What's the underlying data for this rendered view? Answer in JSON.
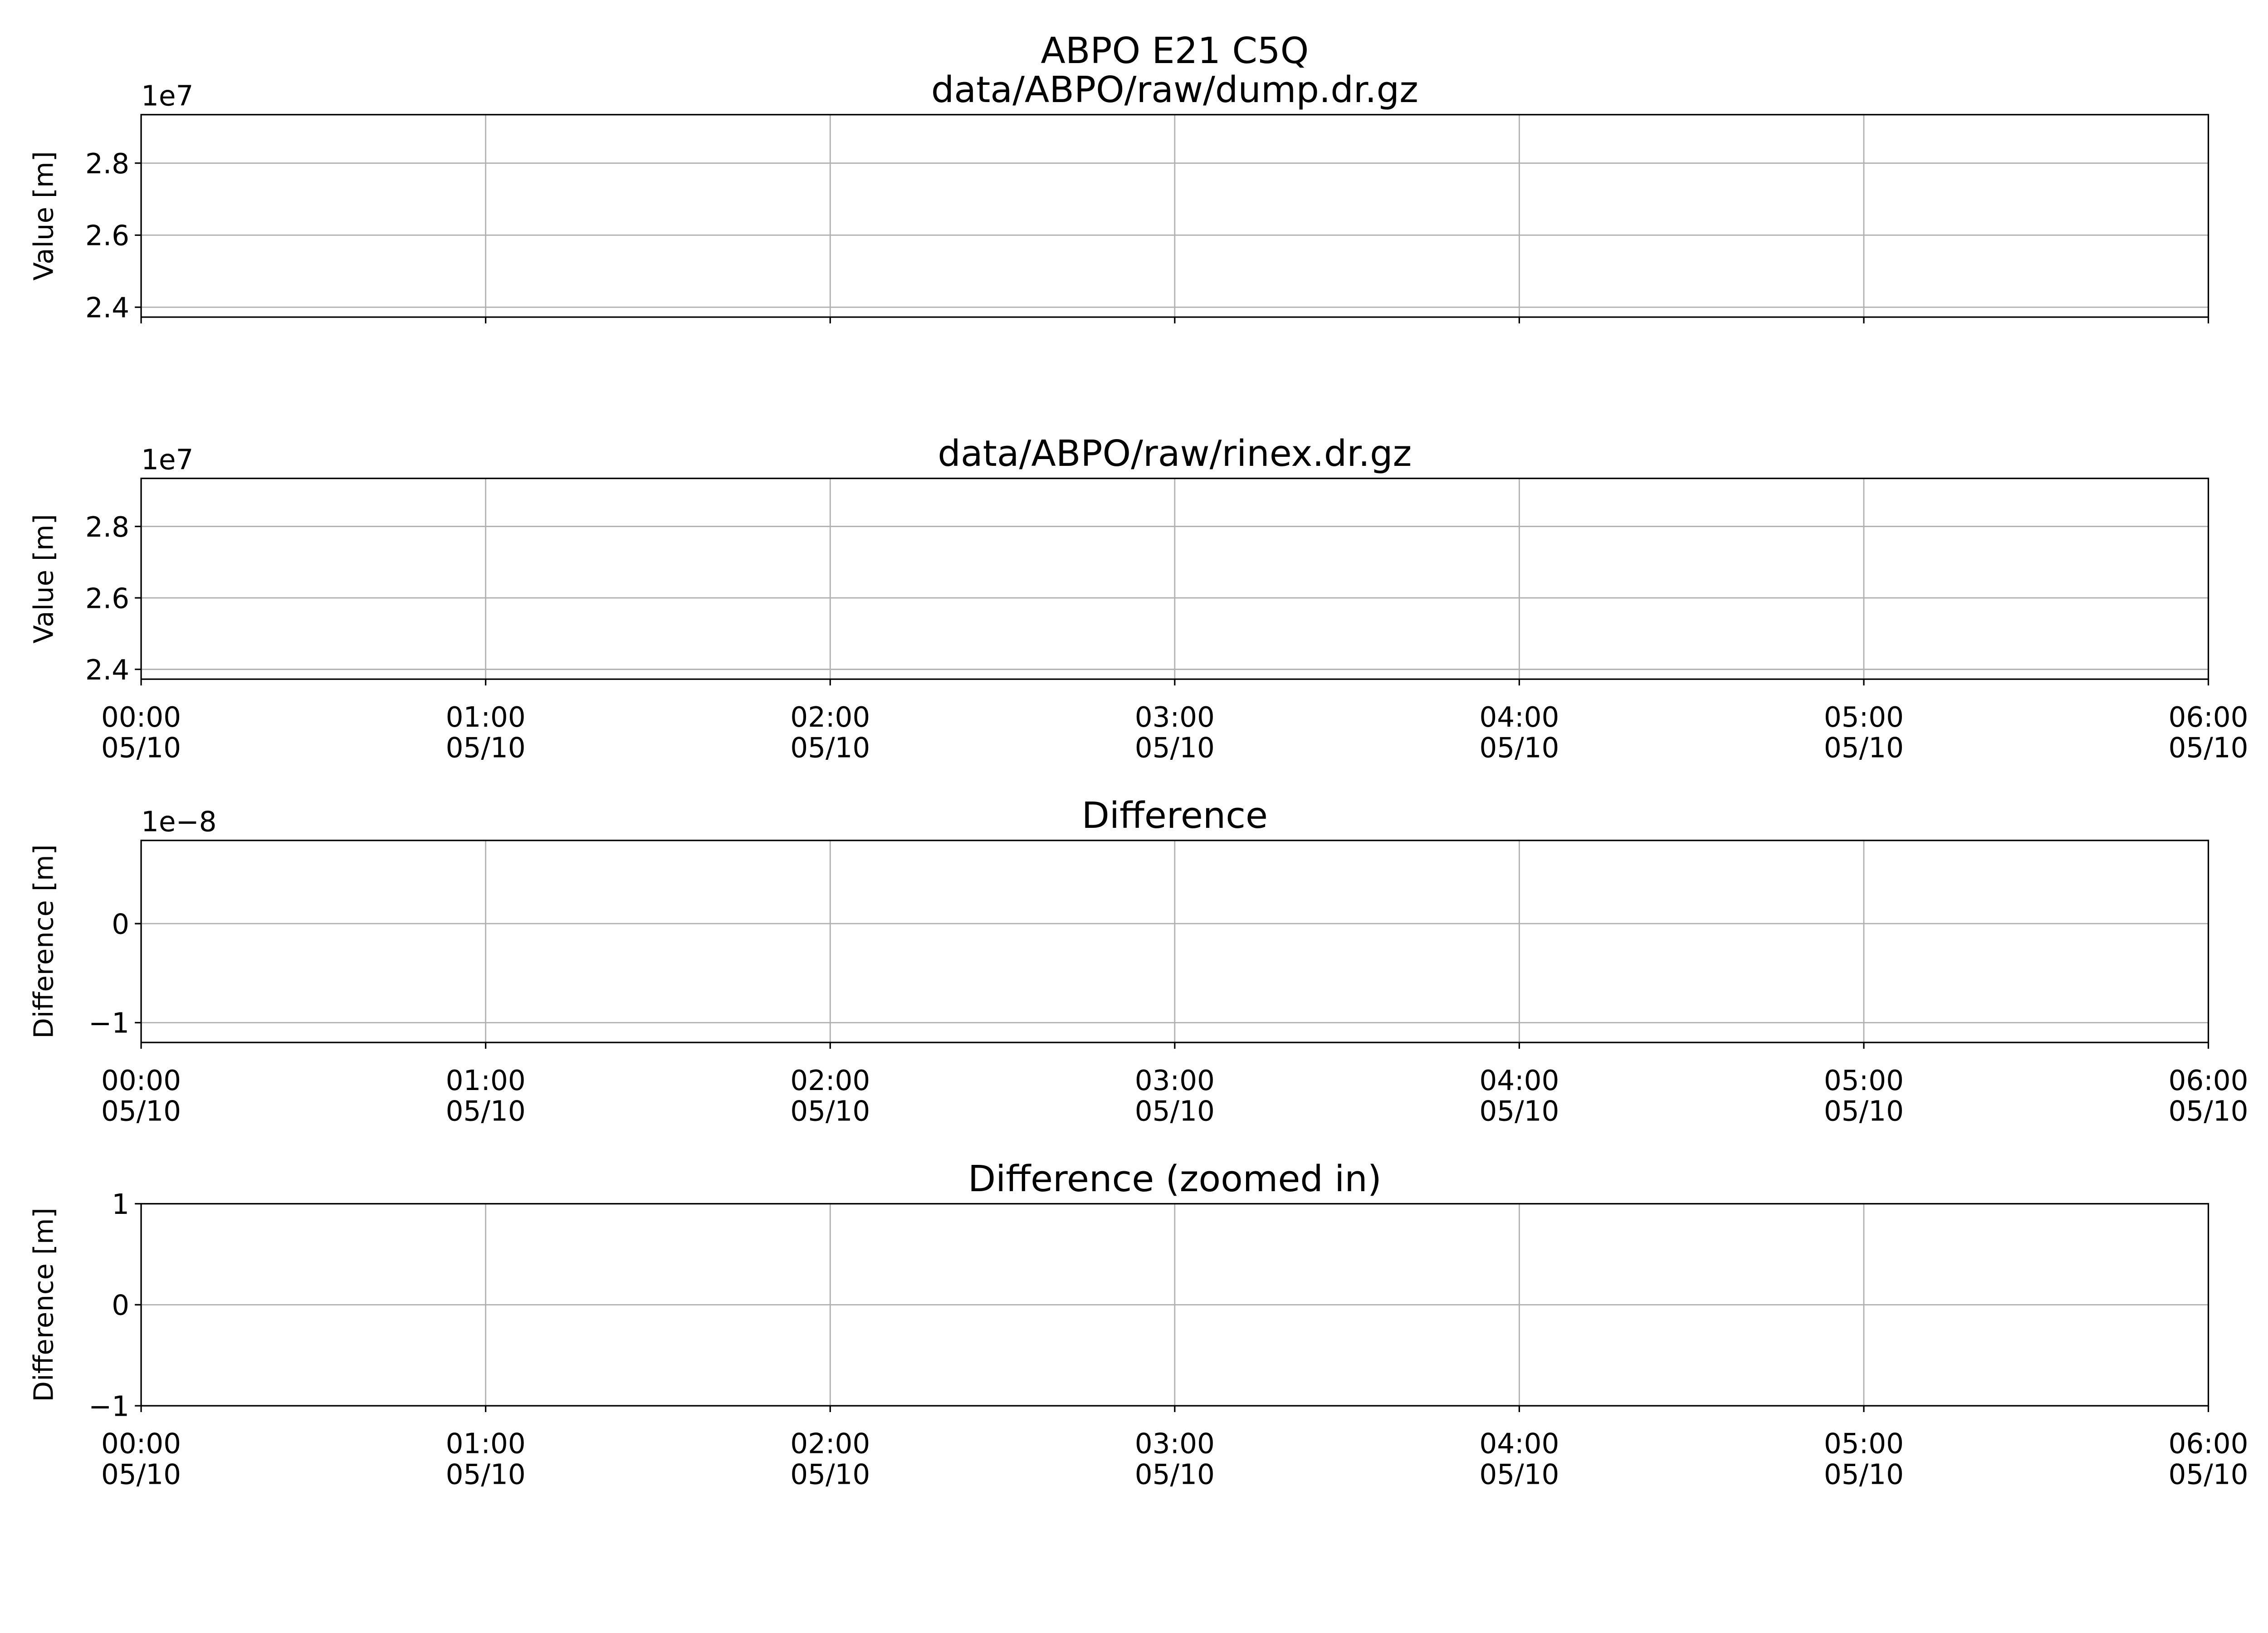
{
  "chart_data": [
    {
      "type": "line",
      "title_lines": [
        "ABPO E21 C5Q",
        "data/ABPO/raw/dump.dr.gz"
      ],
      "ylabel": "Value [m]",
      "offset_text": "1e7",
      "ylim": [
        2.3725,
        2.9345
      ],
      "yticks": [
        2.4,
        2.6,
        2.8
      ],
      "ytick_labels": [
        "2.4",
        "2.6",
        "2.8"
      ],
      "xlim": [
        "00:00",
        "06:00"
      ],
      "xticks": [
        "00:00",
        "01:00",
        "02:00",
        "03:00",
        "04:00",
        "05:00",
        "06:00"
      ],
      "xtick_dates": [],
      "grid": true,
      "series": []
    },
    {
      "type": "line",
      "title_lines": [
        "data/ABPO/raw/rinex.dr.gz"
      ],
      "ylabel": "Value [m]",
      "offset_text": "1e7",
      "ylim": [
        2.3725,
        2.9345
      ],
      "yticks": [
        2.4,
        2.6,
        2.8
      ],
      "ytick_labels": [
        "2.4",
        "2.6",
        "2.8"
      ],
      "xlim": [
        "00:00",
        "06:00"
      ],
      "xticks": [
        "00:00",
        "01:00",
        "02:00",
        "03:00",
        "04:00",
        "05:00",
        "06:00"
      ],
      "xtick_dates": [
        "05/10",
        "05/10",
        "05/10",
        "05/10",
        "05/10",
        "05/10",
        "05/10"
      ],
      "grid": true,
      "series": []
    },
    {
      "type": "line",
      "title_lines": [
        "Difference"
      ],
      "ylabel": "Difference [m]",
      "offset_text": "1e−8",
      "ylim": [
        -1.2,
        0.84
      ],
      "yticks": [
        -1,
        0
      ],
      "ytick_labels": [
        "−1",
        "0"
      ],
      "xlim": [
        "00:00",
        "06:00"
      ],
      "xticks": [
        "00:00",
        "01:00",
        "02:00",
        "03:00",
        "04:00",
        "05:00",
        "06:00"
      ],
      "xtick_dates": [
        "05/10",
        "05/10",
        "05/10",
        "05/10",
        "05/10",
        "05/10",
        "05/10"
      ],
      "grid": true,
      "series": []
    },
    {
      "type": "line",
      "title_lines": [
        "Difference (zoomed in)"
      ],
      "ylabel": "Difference [m]",
      "offset_text": "",
      "ylim": [
        -1,
        1
      ],
      "yticks": [
        -1,
        0,
        1
      ],
      "ytick_labels": [
        "−1",
        "0",
        "1"
      ],
      "xlim": [
        "00:00",
        "06:00"
      ],
      "xticks": [
        "00:00",
        "01:00",
        "02:00",
        "03:00",
        "04:00",
        "05:00",
        "06:00"
      ],
      "xtick_dates": [
        "05/10",
        "05/10",
        "05/10",
        "05/10",
        "05/10",
        "05/10",
        "05/10"
      ],
      "grid": true,
      "series": []
    }
  ]
}
